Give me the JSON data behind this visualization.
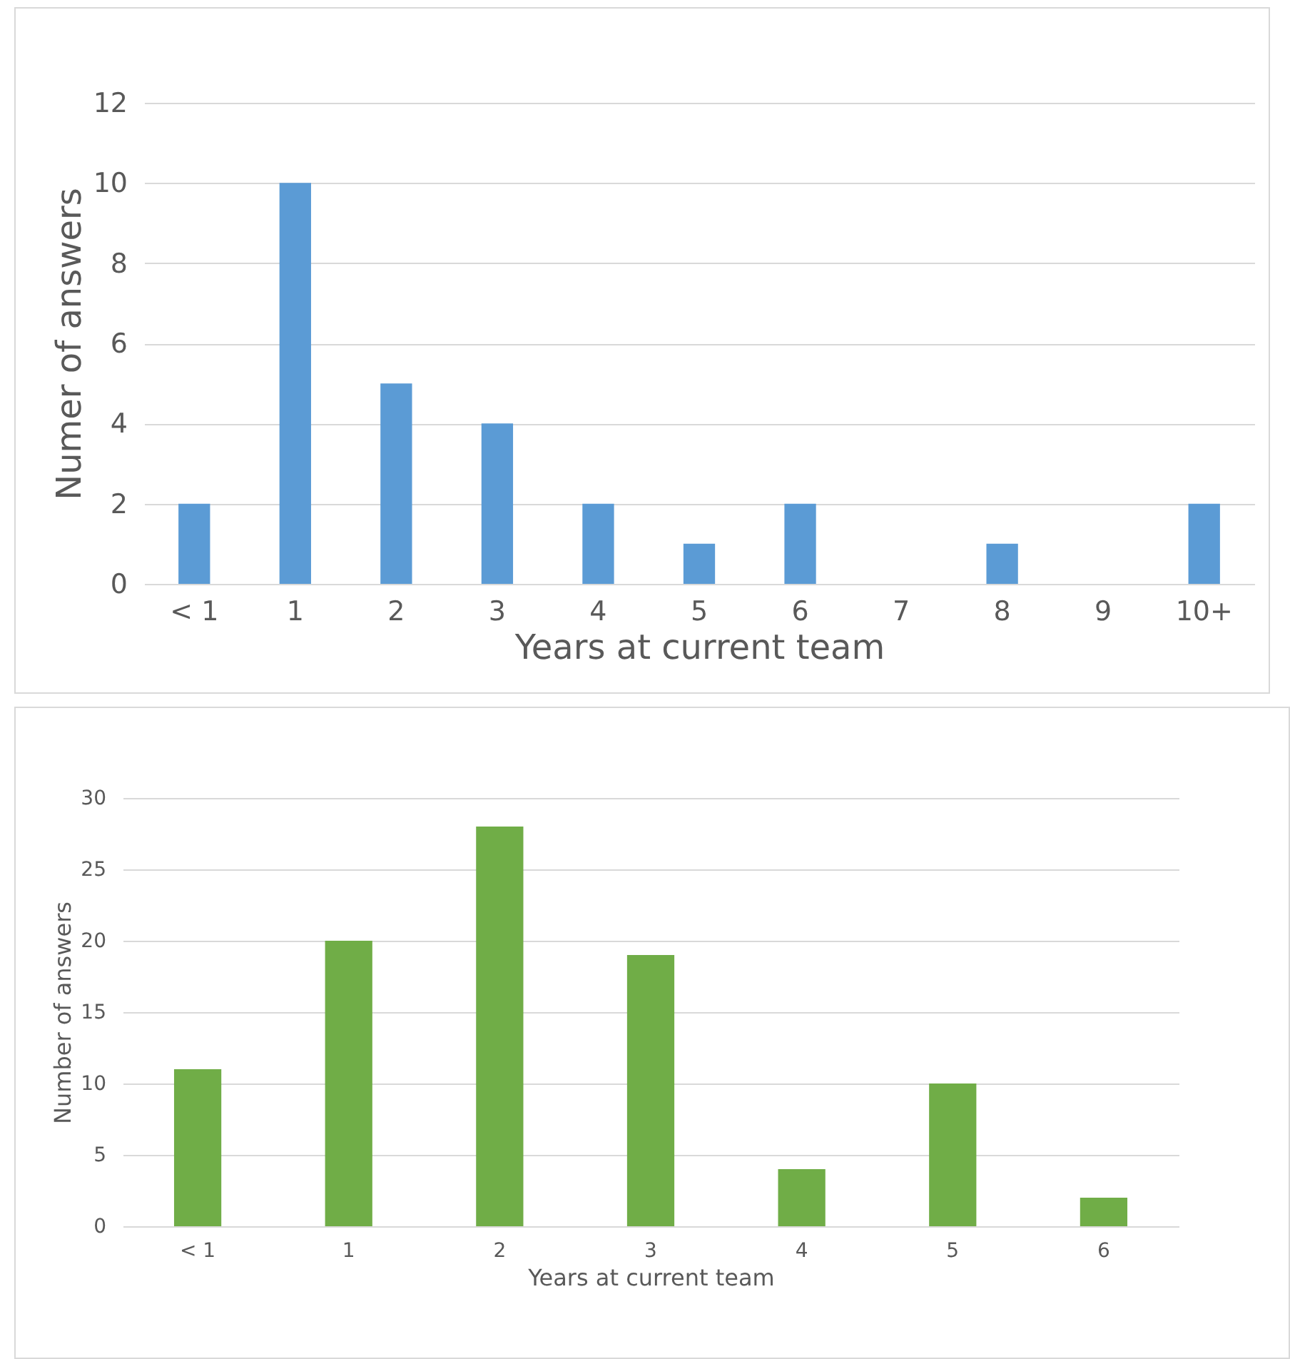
{
  "chart_data": [
    {
      "type": "bar",
      "categories": [
        "< 1",
        "1",
        "2",
        "3",
        "4",
        "5",
        "6",
        "7",
        "8",
        "9",
        "10+"
      ],
      "values": [
        2,
        10,
        5,
        4,
        2,
        1,
        2,
        0,
        1,
        0,
        2
      ],
      "color": "#5b9bd5",
      "ylim": [
        0,
        12
      ],
      "yticks": [
        0,
        2,
        4,
        6,
        8,
        10,
        12
      ],
      "grid": "y",
      "xlabel": "Years at current team",
      "ylabel": "Numer of answers"
    },
    {
      "type": "bar",
      "categories": [
        "< 1",
        "1",
        "2",
        "3",
        "4",
        "5",
        "6"
      ],
      "values": [
        11,
        20,
        28,
        19,
        4,
        10,
        2
      ],
      "color": "#70ad47",
      "ylim": [
        0,
        30
      ],
      "yticks": [
        0,
        5,
        10,
        15,
        20,
        25,
        30
      ],
      "grid": "y",
      "xlabel": "Years at current team",
      "ylabel": "Number of answers"
    }
  ]
}
